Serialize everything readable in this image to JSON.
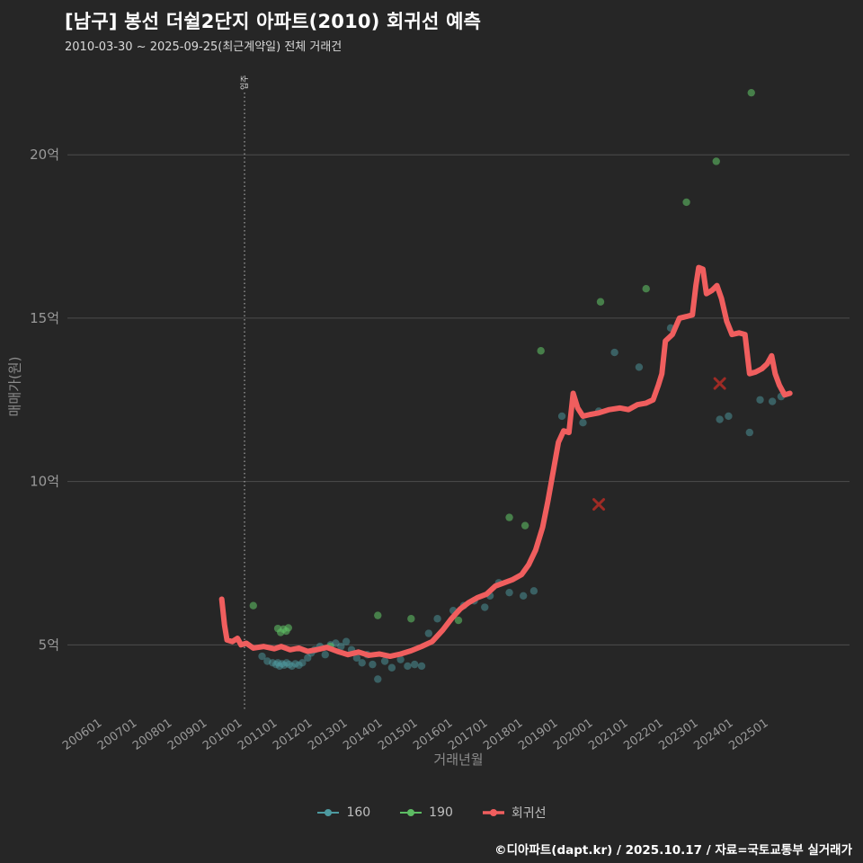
{
  "page": {
    "title": "[남구] 봉선 더쉴2단지 아파트(2010) 회귀선 예측",
    "subtitle": "2010-03-30 ~ 2025-09-25(최근계약일) 전체 거래건",
    "footer": "©디아파트(dapt.kr) / 2025.10.17 / 자료=국토교통부 실거래가"
  },
  "colors": {
    "background": "#262626",
    "title": "#ffffff",
    "subtitle": "#d9d9d9",
    "grid": "#4d4d4d",
    "tick": "#9a9a9a",
    "axis_title": "#8c8c8c",
    "legend_text": "#bfbfbf",
    "move_in": "#bbbbbb",
    "cancel_x": "#9e2b25"
  },
  "chart_data": {
    "type": "scatter",
    "title": "[남구] 봉선 더쉴2단지 아파트(2010) 회귀선 예측",
    "xlabel": "거래년월",
    "ylabel": "매매가(원)",
    "x_unit": "year (거래년월)",
    "y_unit": "억원",
    "x_range": [
      2005.0,
      2027.3
    ],
    "y_range": [
      3.0,
      22.4
    ],
    "grid": "horizontal-only",
    "legend_position": "bottom-center",
    "x_ticks": [
      {
        "label": "200601",
        "year": 2006
      },
      {
        "label": "200701",
        "year": 2007
      },
      {
        "label": "200801",
        "year": 2008
      },
      {
        "label": "200901",
        "year": 2009
      },
      {
        "label": "201001",
        "year": 2010
      },
      {
        "label": "201101",
        "year": 2011
      },
      {
        "label": "201201",
        "year": 2012
      },
      {
        "label": "201301",
        "year": 2013
      },
      {
        "label": "201401",
        "year": 2014
      },
      {
        "label": "201501",
        "year": 2015
      },
      {
        "label": "201601",
        "year": 2016
      },
      {
        "label": "201701",
        "year": 2017
      },
      {
        "label": "201801",
        "year": 2018
      },
      {
        "label": "201901",
        "year": 2019
      },
      {
        "label": "202001",
        "year": 2020
      },
      {
        "label": "202101",
        "year": 2021
      },
      {
        "label": "202201",
        "year": 2022
      },
      {
        "label": "202301",
        "year": 2023
      },
      {
        "label": "202401",
        "year": 2024
      },
      {
        "label": "202501",
        "year": 2025
      }
    ],
    "y_ticks": [
      {
        "label": "5억",
        "value": 5
      },
      {
        "label": "10억",
        "value": 10
      },
      {
        "label": "15억",
        "value": 15
      },
      {
        "label": "20억",
        "value": 20
      }
    ],
    "move_in": {
      "label": "입주",
      "year": 2010.05
    },
    "series": [
      {
        "name": "160",
        "type": "scatter",
        "color": "#4d9aa0",
        "opacity": 0.5,
        "data": [
          [
            2010.55,
            4.65
          ],
          [
            2010.7,
            4.5
          ],
          [
            2010.85,
            4.45
          ],
          [
            2010.95,
            4.4
          ],
          [
            2011.0,
            4.45
          ],
          [
            2011.05,
            4.35
          ],
          [
            2011.12,
            4.42
          ],
          [
            2011.18,
            4.38
          ],
          [
            2011.25,
            4.45
          ],
          [
            2011.32,
            4.4
          ],
          [
            2011.4,
            4.35
          ],
          [
            2011.5,
            4.42
          ],
          [
            2011.6,
            4.38
          ],
          [
            2011.7,
            4.45
          ],
          [
            2011.85,
            4.6
          ],
          [
            2011.95,
            4.75
          ],
          [
            2012.05,
            4.85
          ],
          [
            2012.2,
            4.95
          ],
          [
            2012.35,
            4.7
          ],
          [
            2012.5,
            5.0
          ],
          [
            2012.65,
            5.05
          ],
          [
            2012.8,
            4.95
          ],
          [
            2012.95,
            5.1
          ],
          [
            2013.1,
            4.85
          ],
          [
            2013.25,
            4.6
          ],
          [
            2013.4,
            4.45
          ],
          [
            2013.55,
            4.7
          ],
          [
            2013.7,
            4.4
          ],
          [
            2013.85,
            3.95
          ],
          [
            2014.05,
            4.5
          ],
          [
            2014.25,
            4.3
          ],
          [
            2014.5,
            4.55
          ],
          [
            2014.7,
            4.35
          ],
          [
            2014.9,
            4.4
          ],
          [
            2015.1,
            4.35
          ],
          [
            2015.3,
            5.35
          ],
          [
            2015.55,
            5.8
          ],
          [
            2016.0,
            6.05
          ],
          [
            2016.3,
            6.2
          ],
          [
            2016.6,
            6.35
          ],
          [
            2016.9,
            6.15
          ],
          [
            2017.05,
            6.5
          ],
          [
            2017.3,
            6.9
          ],
          [
            2017.6,
            6.6
          ],
          [
            2018.0,
            6.5
          ],
          [
            2018.3,
            6.65
          ],
          [
            2019.1,
            12.0
          ],
          [
            2019.7,
            11.8
          ],
          [
            2020.15,
            12.15
          ],
          [
            2020.6,
            13.95
          ],
          [
            2021.3,
            13.5
          ],
          [
            2022.2,
            14.7
          ],
          [
            2023.6,
            11.9
          ],
          [
            2023.85,
            12.0
          ],
          [
            2024.45,
            11.5
          ],
          [
            2024.75,
            12.5
          ],
          [
            2025.1,
            12.45
          ],
          [
            2025.35,
            12.6
          ]
        ]
      },
      {
        "name": "190",
        "type": "scatter",
        "color": "#5dbb63",
        "opacity": 0.6,
        "data": [
          [
            2010.3,
            6.2
          ],
          [
            2011.0,
            5.5
          ],
          [
            2011.08,
            5.38
          ],
          [
            2011.16,
            5.48
          ],
          [
            2011.24,
            5.42
          ],
          [
            2011.3,
            5.52
          ],
          [
            2012.5,
            4.95
          ],
          [
            2013.85,
            5.9
          ],
          [
            2014.8,
            5.8
          ],
          [
            2016.15,
            5.75
          ],
          [
            2017.6,
            8.9
          ],
          [
            2018.05,
            8.65
          ],
          [
            2018.5,
            14.0
          ],
          [
            2020.2,
            15.5
          ],
          [
            2021.5,
            15.9
          ],
          [
            2022.65,
            18.55
          ],
          [
            2023.5,
            19.8
          ],
          [
            2024.5,
            21.9
          ]
        ]
      },
      {
        "name": "회귀선",
        "type": "line",
        "color": "#f05e5e",
        "opacity": 1,
        "data": [
          [
            2009.4,
            6.4
          ],
          [
            2009.48,
            5.6
          ],
          [
            2009.55,
            5.15
          ],
          [
            2009.7,
            5.1
          ],
          [
            2009.85,
            5.2
          ],
          [
            2009.95,
            5.0
          ],
          [
            2010.1,
            5.05
          ],
          [
            2010.3,
            4.9
          ],
          [
            2010.6,
            4.95
          ],
          [
            2010.9,
            4.88
          ],
          [
            2011.1,
            4.95
          ],
          [
            2011.35,
            4.85
          ],
          [
            2011.6,
            4.9
          ],
          [
            2011.85,
            4.8
          ],
          [
            2012.1,
            4.85
          ],
          [
            2012.4,
            4.92
          ],
          [
            2012.7,
            4.8
          ],
          [
            2013.0,
            4.7
          ],
          [
            2013.3,
            4.78
          ],
          [
            2013.6,
            4.68
          ],
          [
            2013.9,
            4.72
          ],
          [
            2014.2,
            4.65
          ],
          [
            2014.5,
            4.72
          ],
          [
            2014.8,
            4.82
          ],
          [
            2015.1,
            4.95
          ],
          [
            2015.4,
            5.1
          ],
          [
            2015.7,
            5.45
          ],
          [
            2015.95,
            5.8
          ],
          [
            2016.2,
            6.1
          ],
          [
            2016.45,
            6.3
          ],
          [
            2016.7,
            6.45
          ],
          [
            2016.95,
            6.55
          ],
          [
            2017.2,
            6.8
          ],
          [
            2017.45,
            6.9
          ],
          [
            2017.7,
            7.0
          ],
          [
            2017.95,
            7.15
          ],
          [
            2018.15,
            7.45
          ],
          [
            2018.35,
            7.9
          ],
          [
            2018.55,
            8.6
          ],
          [
            2018.7,
            9.4
          ],
          [
            2018.85,
            10.3
          ],
          [
            2019.0,
            11.2
          ],
          [
            2019.15,
            11.55
          ],
          [
            2019.3,
            11.5
          ],
          [
            2019.42,
            12.7
          ],
          [
            2019.55,
            12.25
          ],
          [
            2019.7,
            12.0
          ],
          [
            2019.9,
            12.05
          ],
          [
            2020.15,
            12.1
          ],
          [
            2020.45,
            12.2
          ],
          [
            2020.75,
            12.25
          ],
          [
            2021.0,
            12.2
          ],
          [
            2021.25,
            12.35
          ],
          [
            2021.5,
            12.4
          ],
          [
            2021.7,
            12.5
          ],
          [
            2021.85,
            12.95
          ],
          [
            2021.95,
            13.3
          ],
          [
            2022.05,
            14.3
          ],
          [
            2022.25,
            14.5
          ],
          [
            2022.45,
            15.0
          ],
          [
            2022.65,
            15.05
          ],
          [
            2022.82,
            15.1
          ],
          [
            2022.92,
            16.0
          ],
          [
            2023.0,
            16.55
          ],
          [
            2023.12,
            16.5
          ],
          [
            2023.22,
            15.75
          ],
          [
            2023.38,
            15.85
          ],
          [
            2023.52,
            16.0
          ],
          [
            2023.65,
            15.6
          ],
          [
            2023.8,
            14.9
          ],
          [
            2023.95,
            14.5
          ],
          [
            2024.15,
            14.55
          ],
          [
            2024.32,
            14.5
          ],
          [
            2024.45,
            13.3
          ],
          [
            2024.62,
            13.35
          ],
          [
            2024.8,
            13.45
          ],
          [
            2024.95,
            13.6
          ],
          [
            2025.08,
            13.85
          ],
          [
            2025.18,
            13.3
          ],
          [
            2025.3,
            12.95
          ],
          [
            2025.45,
            12.65
          ],
          [
            2025.6,
            12.7
          ]
        ]
      }
    ],
    "cancelled_markers": [
      [
        2020.15,
        9.3
      ],
      [
        2023.6,
        13.0
      ]
    ],
    "legend": [
      "160",
      "190",
      "회귀선"
    ]
  }
}
